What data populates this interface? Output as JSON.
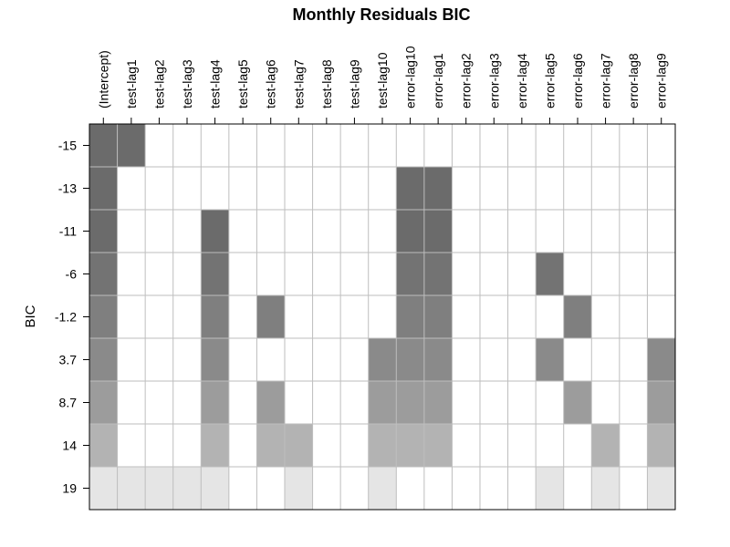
{
  "chart_data": {
    "type": "heatmap",
    "title": "Monthly Residuals BIC",
    "xlabel": "",
    "ylabel": "BIC",
    "columns": [
      "(Intercept)",
      "test-lag1",
      "test-lag2",
      "test-lag3",
      "test-lag4",
      "test-lag5",
      "test-lag6",
      "test-lag7",
      "test-lag8",
      "test-lag9",
      "test-lag10",
      "error-lag10",
      "error-lag1",
      "error-lag2",
      "error-lag3",
      "error-lag4",
      "error-lag5",
      "error-lag6",
      "error-lag7",
      "error-lag8",
      "error-lag9"
    ],
    "rows": [
      {
        "label": "-15",
        "color": "#6b6b6b",
        "included": [
          "(Intercept)",
          "test-lag1"
        ]
      },
      {
        "label": "-13",
        "color": "#6b6b6b",
        "included": [
          "(Intercept)",
          "error-lag10",
          "error-lag1"
        ]
      },
      {
        "label": "-11",
        "color": "#6b6b6b",
        "included": [
          "(Intercept)",
          "test-lag4",
          "error-lag10",
          "error-lag1"
        ]
      },
      {
        "label": "-6",
        "color": "#737373",
        "included": [
          "(Intercept)",
          "test-lag4",
          "error-lag10",
          "error-lag1",
          "error-lag5"
        ]
      },
      {
        "label": "-1.2",
        "color": "#7f7f7f",
        "included": [
          "(Intercept)",
          "test-lag4",
          "test-lag6",
          "error-lag10",
          "error-lag1",
          "error-lag6"
        ]
      },
      {
        "label": "3.7",
        "color": "#8a8a8a",
        "included": [
          "(Intercept)",
          "test-lag4",
          "test-lag10",
          "error-lag10",
          "error-lag1",
          "error-lag5",
          "error-lag9"
        ]
      },
      {
        "label": "8.7",
        "color": "#9c9c9c",
        "included": [
          "(Intercept)",
          "test-lag4",
          "test-lag6",
          "test-lag10",
          "error-lag10",
          "error-lag1",
          "error-lag6",
          "error-lag9"
        ]
      },
      {
        "label": "14",
        "color": "#b3b3b3",
        "included": [
          "(Intercept)",
          "test-lag4",
          "test-lag6",
          "test-lag7",
          "test-lag10",
          "error-lag10",
          "error-lag1",
          "error-lag7",
          "error-lag9"
        ]
      },
      {
        "label": "19",
        "color": "#e5e5e5",
        "included": [
          "(Intercept)",
          "test-lag1",
          "test-lag2",
          "test-lag3",
          "test-lag4",
          "test-lag7",
          "test-lag10",
          "error-lag5",
          "error-lag7",
          "error-lag9"
        ]
      }
    ],
    "grid": true,
    "legend": "none"
  }
}
